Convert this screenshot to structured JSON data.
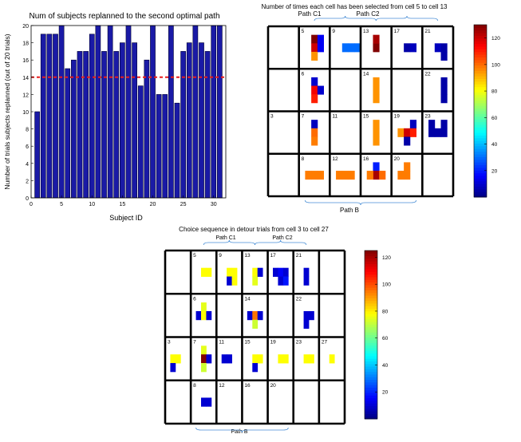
{
  "chart_data": [
    {
      "type": "bar",
      "title": "Num of subjects replanned to the second optimal path",
      "xlabel": "Subject ID",
      "ylabel": "Number of trials subjects replanned (out of 20 trials)",
      "xlim": [
        0,
        32
      ],
      "ylim": [
        0,
        20
      ],
      "xticks": [
        0,
        5,
        10,
        15,
        20,
        25,
        30
      ],
      "yticks": [
        0,
        2,
        4,
        6,
        8,
        10,
        12,
        14,
        16,
        18,
        20
      ],
      "categories": [
        1,
        2,
        3,
        4,
        5,
        6,
        7,
        8,
        9,
        10,
        11,
        12,
        13,
        14,
        15,
        16,
        17,
        18,
        19,
        20,
        21,
        22,
        23,
        24,
        25,
        26,
        27,
        28,
        29,
        30,
        31
      ],
      "values": [
        10,
        19,
        19,
        19,
        20,
        15,
        16,
        17,
        17,
        19,
        20,
        17,
        20,
        17,
        18,
        20,
        18,
        13,
        16,
        20,
        12,
        12,
        20,
        11,
        17,
        18,
        20,
        18,
        17,
        20,
        20
      ],
      "bar_color": "#1a1aa6",
      "threshold": {
        "value": 14,
        "color": "#e81c1c",
        "style": "dashed"
      }
    },
    {
      "type": "heatmap",
      "title": "Number of times each cell has been selected from cell 5 to cell 13",
      "path_labels": {
        "top_left": "Path C1",
        "top_right": "Path C2",
        "bottom": "Path B"
      },
      "cell_numbers": [
        {
          "label": "5",
          "row": 0,
          "col": 1
        },
        {
          "label": "9",
          "row": 0,
          "col": 2
        },
        {
          "label": "13",
          "row": 0,
          "col": 3
        },
        {
          "label": "17",
          "row": 0,
          "col": 4
        },
        {
          "label": "21",
          "row": 0,
          "col": 5
        },
        {
          "label": "6",
          "row": 1,
          "col": 1
        },
        {
          "label": "14",
          "row": 1,
          "col": 3
        },
        {
          "label": "22",
          "row": 1,
          "col": 5
        },
        {
          "label": "3",
          "row": 2,
          "col": 0
        },
        {
          "label": "7",
          "row": 2,
          "col": 1
        },
        {
          "label": "11",
          "row": 2,
          "col": 2
        },
        {
          "label": "15",
          "row": 2,
          "col": 3
        },
        {
          "label": "19",
          "row": 2,
          "col": 4
        },
        {
          "label": "23",
          "row": 2,
          "col": 5
        },
        {
          "label": "8",
          "row": 3,
          "col": 1
        },
        {
          "label": "12",
          "row": 3,
          "col": 2
        },
        {
          "label": "16",
          "row": 3,
          "col": 3
        },
        {
          "label": "20",
          "row": 3,
          "col": 4
        }
      ],
      "colorbar": {
        "min": 0,
        "max": 130,
        "ticks": [
          20,
          40,
          60,
          80,
          100,
          120
        ]
      },
      "patches": [
        {
          "row": 0,
          "col": 1,
          "sr": 0,
          "sc": 1,
          "value": 130
        },
        {
          "row": 0,
          "col": 1,
          "sr": 1,
          "sc": 1,
          "value": 120
        },
        {
          "row": 0,
          "col": 1,
          "sr": 2,
          "sc": 1,
          "value": 95
        },
        {
          "row": 0,
          "col": 1,
          "sr": 1,
          "sc": 2,
          "value": 15
        },
        {
          "row": 0,
          "col": 1,
          "sr": 0,
          "sc": 2,
          "value": 15
        },
        {
          "row": 0,
          "col": 2,
          "sr": 1,
          "sc": 1,
          "value": 30
        },
        {
          "row": 0,
          "col": 2,
          "sr": 1,
          "sc": 2,
          "value": 30
        },
        {
          "row": 0,
          "col": 2,
          "sr": 1,
          "sc": 3,
          "value": 30
        },
        {
          "row": 0,
          "col": 3,
          "sr": 1,
          "sc": 1,
          "value": 130
        },
        {
          "row": 0,
          "col": 3,
          "sr": 0,
          "sc": 1,
          "value": 125
        },
        {
          "row": 0,
          "col": 4,
          "sr": 1,
          "sc": 1,
          "value": 5
        },
        {
          "row": 0,
          "col": 4,
          "sr": 1,
          "sc": 2,
          "value": 8
        },
        {
          "row": 0,
          "col": 5,
          "sr": 1,
          "sc": 1,
          "value": 8
        },
        {
          "row": 0,
          "col": 5,
          "sr": 1,
          "sc": 2,
          "value": 5
        },
        {
          "row": 0,
          "col": 5,
          "sr": 2,
          "sc": 2,
          "value": 5
        },
        {
          "row": 1,
          "col": 1,
          "sr": 0,
          "sc": 1,
          "value": 10
        },
        {
          "row": 1,
          "col": 1,
          "sr": 1,
          "sc": 1,
          "value": 115
        },
        {
          "row": 1,
          "col": 1,
          "sr": 2,
          "sc": 1,
          "value": 110
        },
        {
          "row": 1,
          "col": 1,
          "sr": 1,
          "sc": 2,
          "value": 10
        },
        {
          "row": 1,
          "col": 3,
          "sr": 0,
          "sc": 1,
          "value": 95
        },
        {
          "row": 1,
          "col": 3,
          "sr": 1,
          "sc": 1,
          "value": 95
        },
        {
          "row": 1,
          "col": 3,
          "sr": 2,
          "sc": 1,
          "value": 95
        },
        {
          "row": 1,
          "col": 5,
          "sr": 0,
          "sc": 2,
          "value": 5
        },
        {
          "row": 1,
          "col": 5,
          "sr": 1,
          "sc": 2,
          "value": 5
        },
        {
          "row": 1,
          "col": 5,
          "sr": 2,
          "sc": 2,
          "value": 5
        },
        {
          "row": 2,
          "col": 1,
          "sr": 0,
          "sc": 1,
          "value": 8
        },
        {
          "row": 2,
          "col": 1,
          "sr": 1,
          "sc": 1,
          "value": 100
        },
        {
          "row": 2,
          "col": 1,
          "sr": 2,
          "sc": 1,
          "value": 98
        },
        {
          "row": 2,
          "col": 3,
          "sr": 0,
          "sc": 1,
          "value": 95
        },
        {
          "row": 2,
          "col": 3,
          "sr": 1,
          "sc": 1,
          "value": 95
        },
        {
          "row": 2,
          "col": 3,
          "sr": 2,
          "sc": 1,
          "value": 95
        },
        {
          "row": 2,
          "col": 4,
          "sr": 0,
          "sc": 2,
          "value": 8
        },
        {
          "row": 2,
          "col": 4,
          "sr": 1,
          "sc": 0,
          "value": 95
        },
        {
          "row": 2,
          "col": 4,
          "sr": 1,
          "sc": 1,
          "value": 120
        },
        {
          "row": 2,
          "col": 4,
          "sr": 1,
          "sc": 2,
          "value": 110
        },
        {
          "row": 2,
          "col": 4,
          "sr": 2,
          "sc": 1,
          "value": 5
        },
        {
          "row": 2,
          "col": 5,
          "sr": 0,
          "sc": 0,
          "value": 5
        },
        {
          "row": 2,
          "col": 5,
          "sr": 0,
          "sc": 2,
          "value": 5
        },
        {
          "row": 2,
          "col": 5,
          "sr": 1,
          "sc": 0,
          "value": 5
        },
        {
          "row": 2,
          "col": 5,
          "sr": 1,
          "sc": 1,
          "value": 5
        },
        {
          "row": 2,
          "col": 5,
          "sr": 1,
          "sc": 2,
          "value": 5
        },
        {
          "row": 3,
          "col": 1,
          "sr": 1,
          "sc": 0,
          "value": 98
        },
        {
          "row": 3,
          "col": 1,
          "sr": 1,
          "sc": 1,
          "value": 98
        },
        {
          "row": 3,
          "col": 1,
          "sr": 1,
          "sc": 2,
          "value": 98
        },
        {
          "row": 3,
          "col": 2,
          "sr": 1,
          "sc": 0,
          "value": 98
        },
        {
          "row": 3,
          "col": 2,
          "sr": 1,
          "sc": 1,
          "value": 98
        },
        {
          "row": 3,
          "col": 2,
          "sr": 1,
          "sc": 2,
          "value": 98
        },
        {
          "row": 3,
          "col": 3,
          "sr": 0,
          "sc": 1,
          "value": 20
        },
        {
          "row": 3,
          "col": 3,
          "sr": 1,
          "sc": 1,
          "value": 125
        },
        {
          "row": 3,
          "col": 3,
          "sr": 1,
          "sc": 2,
          "value": 100
        },
        {
          "row": 3,
          "col": 3,
          "sr": 1,
          "sc": 0,
          "value": 98
        },
        {
          "row": 3,
          "col": 4,
          "sr": 0,
          "sc": 1,
          "value": 98
        },
        {
          "row": 3,
          "col": 4,
          "sr": 1,
          "sc": 0,
          "value": 98
        },
        {
          "row": 3,
          "col": 4,
          "sr": 1,
          "sc": 1,
          "value": 98
        }
      ]
    },
    {
      "type": "heatmap",
      "title": "Choice sequence in detour trials from cell 3 to cell 27",
      "path_labels": {
        "top_left": "Path C1",
        "top_right": "Path C2",
        "bottom": "Path B"
      },
      "cell_numbers": [
        {
          "label": "5",
          "row": 0,
          "col": 1
        },
        {
          "label": "9",
          "row": 0,
          "col": 2
        },
        {
          "label": "13",
          "row": 0,
          "col": 3
        },
        {
          "label": "17",
          "row": 0,
          "col": 4
        },
        {
          "label": "21",
          "row": 0,
          "col": 5
        },
        {
          "label": "6",
          "row": 1,
          "col": 1
        },
        {
          "label": "14",
          "row": 1,
          "col": 3
        },
        {
          "label": "22",
          "row": 1,
          "col": 5
        },
        {
          "label": "3",
          "row": 2,
          "col": 0
        },
        {
          "label": "7",
          "row": 2,
          "col": 1
        },
        {
          "label": "11",
          "row": 2,
          "col": 2
        },
        {
          "label": "15",
          "row": 2,
          "col": 3
        },
        {
          "label": "19",
          "row": 2,
          "col": 4
        },
        {
          "label": "23",
          "row": 2,
          "col": 5
        },
        {
          "label": "27",
          "row": 2,
          "col": 6
        },
        {
          "label": "8",
          "row": 3,
          "col": 1
        },
        {
          "label": "12",
          "row": 3,
          "col": 2
        },
        {
          "label": "16",
          "row": 3,
          "col": 3
        },
        {
          "label": "20",
          "row": 3,
          "col": 4
        }
      ],
      "colorbar": {
        "min": 0,
        "max": 125,
        "ticks": [
          20,
          40,
          60,
          80,
          100,
          120
        ]
      },
      "patches": [
        {
          "row": 0,
          "col": 1,
          "sr": 1,
          "sc": 1,
          "value": 78
        },
        {
          "row": 0,
          "col": 1,
          "sr": 1,
          "sc": 2,
          "value": 78
        },
        {
          "row": 0,
          "col": 2,
          "sr": 1,
          "sc": 1,
          "value": 78
        },
        {
          "row": 0,
          "col": 2,
          "sr": 1,
          "sc": 2,
          "value": 78
        },
        {
          "row": 0,
          "col": 2,
          "sr": 2,
          "sc": 1,
          "value": 10
        },
        {
          "row": 0,
          "col": 2,
          "sr": 2,
          "sc": 2,
          "value": 78
        },
        {
          "row": 0,
          "col": 3,
          "sr": 1,
          "sc": 1,
          "value": 78
        },
        {
          "row": 0,
          "col": 3,
          "sr": 2,
          "sc": 1,
          "value": 75
        },
        {
          "row": 0,
          "col": 3,
          "sr": 1,
          "sc": 2,
          "value": 10
        },
        {
          "row": 0,
          "col": 4,
          "sr": 1,
          "sc": 0,
          "value": 10
        },
        {
          "row": 0,
          "col": 4,
          "sr": 1,
          "sc": 1,
          "value": 15
        },
        {
          "row": 0,
          "col": 4,
          "sr": 1,
          "sc": 2,
          "value": 10
        },
        {
          "row": 0,
          "col": 4,
          "sr": 2,
          "sc": 1,
          "value": 10
        },
        {
          "row": 0,
          "col": 4,
          "sr": 2,
          "sc": 2,
          "value": 18
        },
        {
          "row": 0,
          "col": 5,
          "sr": 1,
          "sc": 1,
          "value": 10
        },
        {
          "row": 0,
          "col": 5,
          "sr": 2,
          "sc": 1,
          "value": 10
        },
        {
          "row": 1,
          "col": 1,
          "sr": 0,
          "sc": 1,
          "value": 75
        },
        {
          "row": 1,
          "col": 1,
          "sr": 1,
          "sc": 0,
          "value": 10
        },
        {
          "row": 1,
          "col": 1,
          "sr": 1,
          "sc": 1,
          "value": 78
        },
        {
          "row": 1,
          "col": 1,
          "sr": 1,
          "sc": 2,
          "value": 10
        },
        {
          "row": 1,
          "col": 3,
          "sr": 1,
          "sc": 0,
          "value": 10
        },
        {
          "row": 1,
          "col": 3,
          "sr": 1,
          "sc": 1,
          "value": 95
        },
        {
          "row": 1,
          "col": 3,
          "sr": 1,
          "sc": 2,
          "value": 10
        },
        {
          "row": 1,
          "col": 3,
          "sr": 2,
          "sc": 1,
          "value": 72
        },
        {
          "row": 1,
          "col": 5,
          "sr": 1,
          "sc": 1,
          "value": 10
        },
        {
          "row": 1,
          "col": 5,
          "sr": 1,
          "sc": 2,
          "value": 10
        },
        {
          "row": 1,
          "col": 5,
          "sr": 2,
          "sc": 1,
          "value": 10
        },
        {
          "row": 2,
          "col": 0,
          "sr": 1,
          "sc": 0,
          "value": 78
        },
        {
          "row": 2,
          "col": 0,
          "sr": 1,
          "sc": 1,
          "value": 78
        },
        {
          "row": 2,
          "col": 0,
          "sr": 2,
          "sc": 0,
          "value": 10
        },
        {
          "row": 2,
          "col": 1,
          "sr": 0,
          "sc": 1,
          "value": 75
        },
        {
          "row": 2,
          "col": 1,
          "sr": 1,
          "sc": 1,
          "value": 125
        },
        {
          "row": 2,
          "col": 1,
          "sr": 1,
          "sc": 2,
          "value": 10
        },
        {
          "row": 2,
          "col": 1,
          "sr": 2,
          "sc": 1,
          "value": 72
        },
        {
          "row": 2,
          "col": 2,
          "sr": 1,
          "sc": 0,
          "value": 10
        },
        {
          "row": 2,
          "col": 2,
          "sr": 1,
          "sc": 1,
          "value": 10
        },
        {
          "row": 2,
          "col": 3,
          "sr": 1,
          "sc": 1,
          "value": 78
        },
        {
          "row": 2,
          "col": 3,
          "sr": 1,
          "sc": 2,
          "value": 78
        },
        {
          "row": 2,
          "col": 3,
          "sr": 2,
          "sc": 1,
          "value": 10
        },
        {
          "row": 2,
          "col": 4,
          "sr": 1,
          "sc": 1,
          "value": 78
        },
        {
          "row": 2,
          "col": 4,
          "sr": 1,
          "sc": 2,
          "value": 78
        },
        {
          "row": 2,
          "col": 5,
          "sr": 1,
          "sc": 1,
          "value": 78
        },
        {
          "row": 2,
          "col": 5,
          "sr": 1,
          "sc": 2,
          "value": 78
        },
        {
          "row": 2,
          "col": 6,
          "sr": 1,
          "sc": 1,
          "value": 78
        },
        {
          "row": 3,
          "col": 1,
          "sr": 1,
          "sc": 1,
          "value": 10
        },
        {
          "row": 3,
          "col": 1,
          "sr": 1,
          "sc": 2,
          "value": 10
        }
      ]
    }
  ]
}
